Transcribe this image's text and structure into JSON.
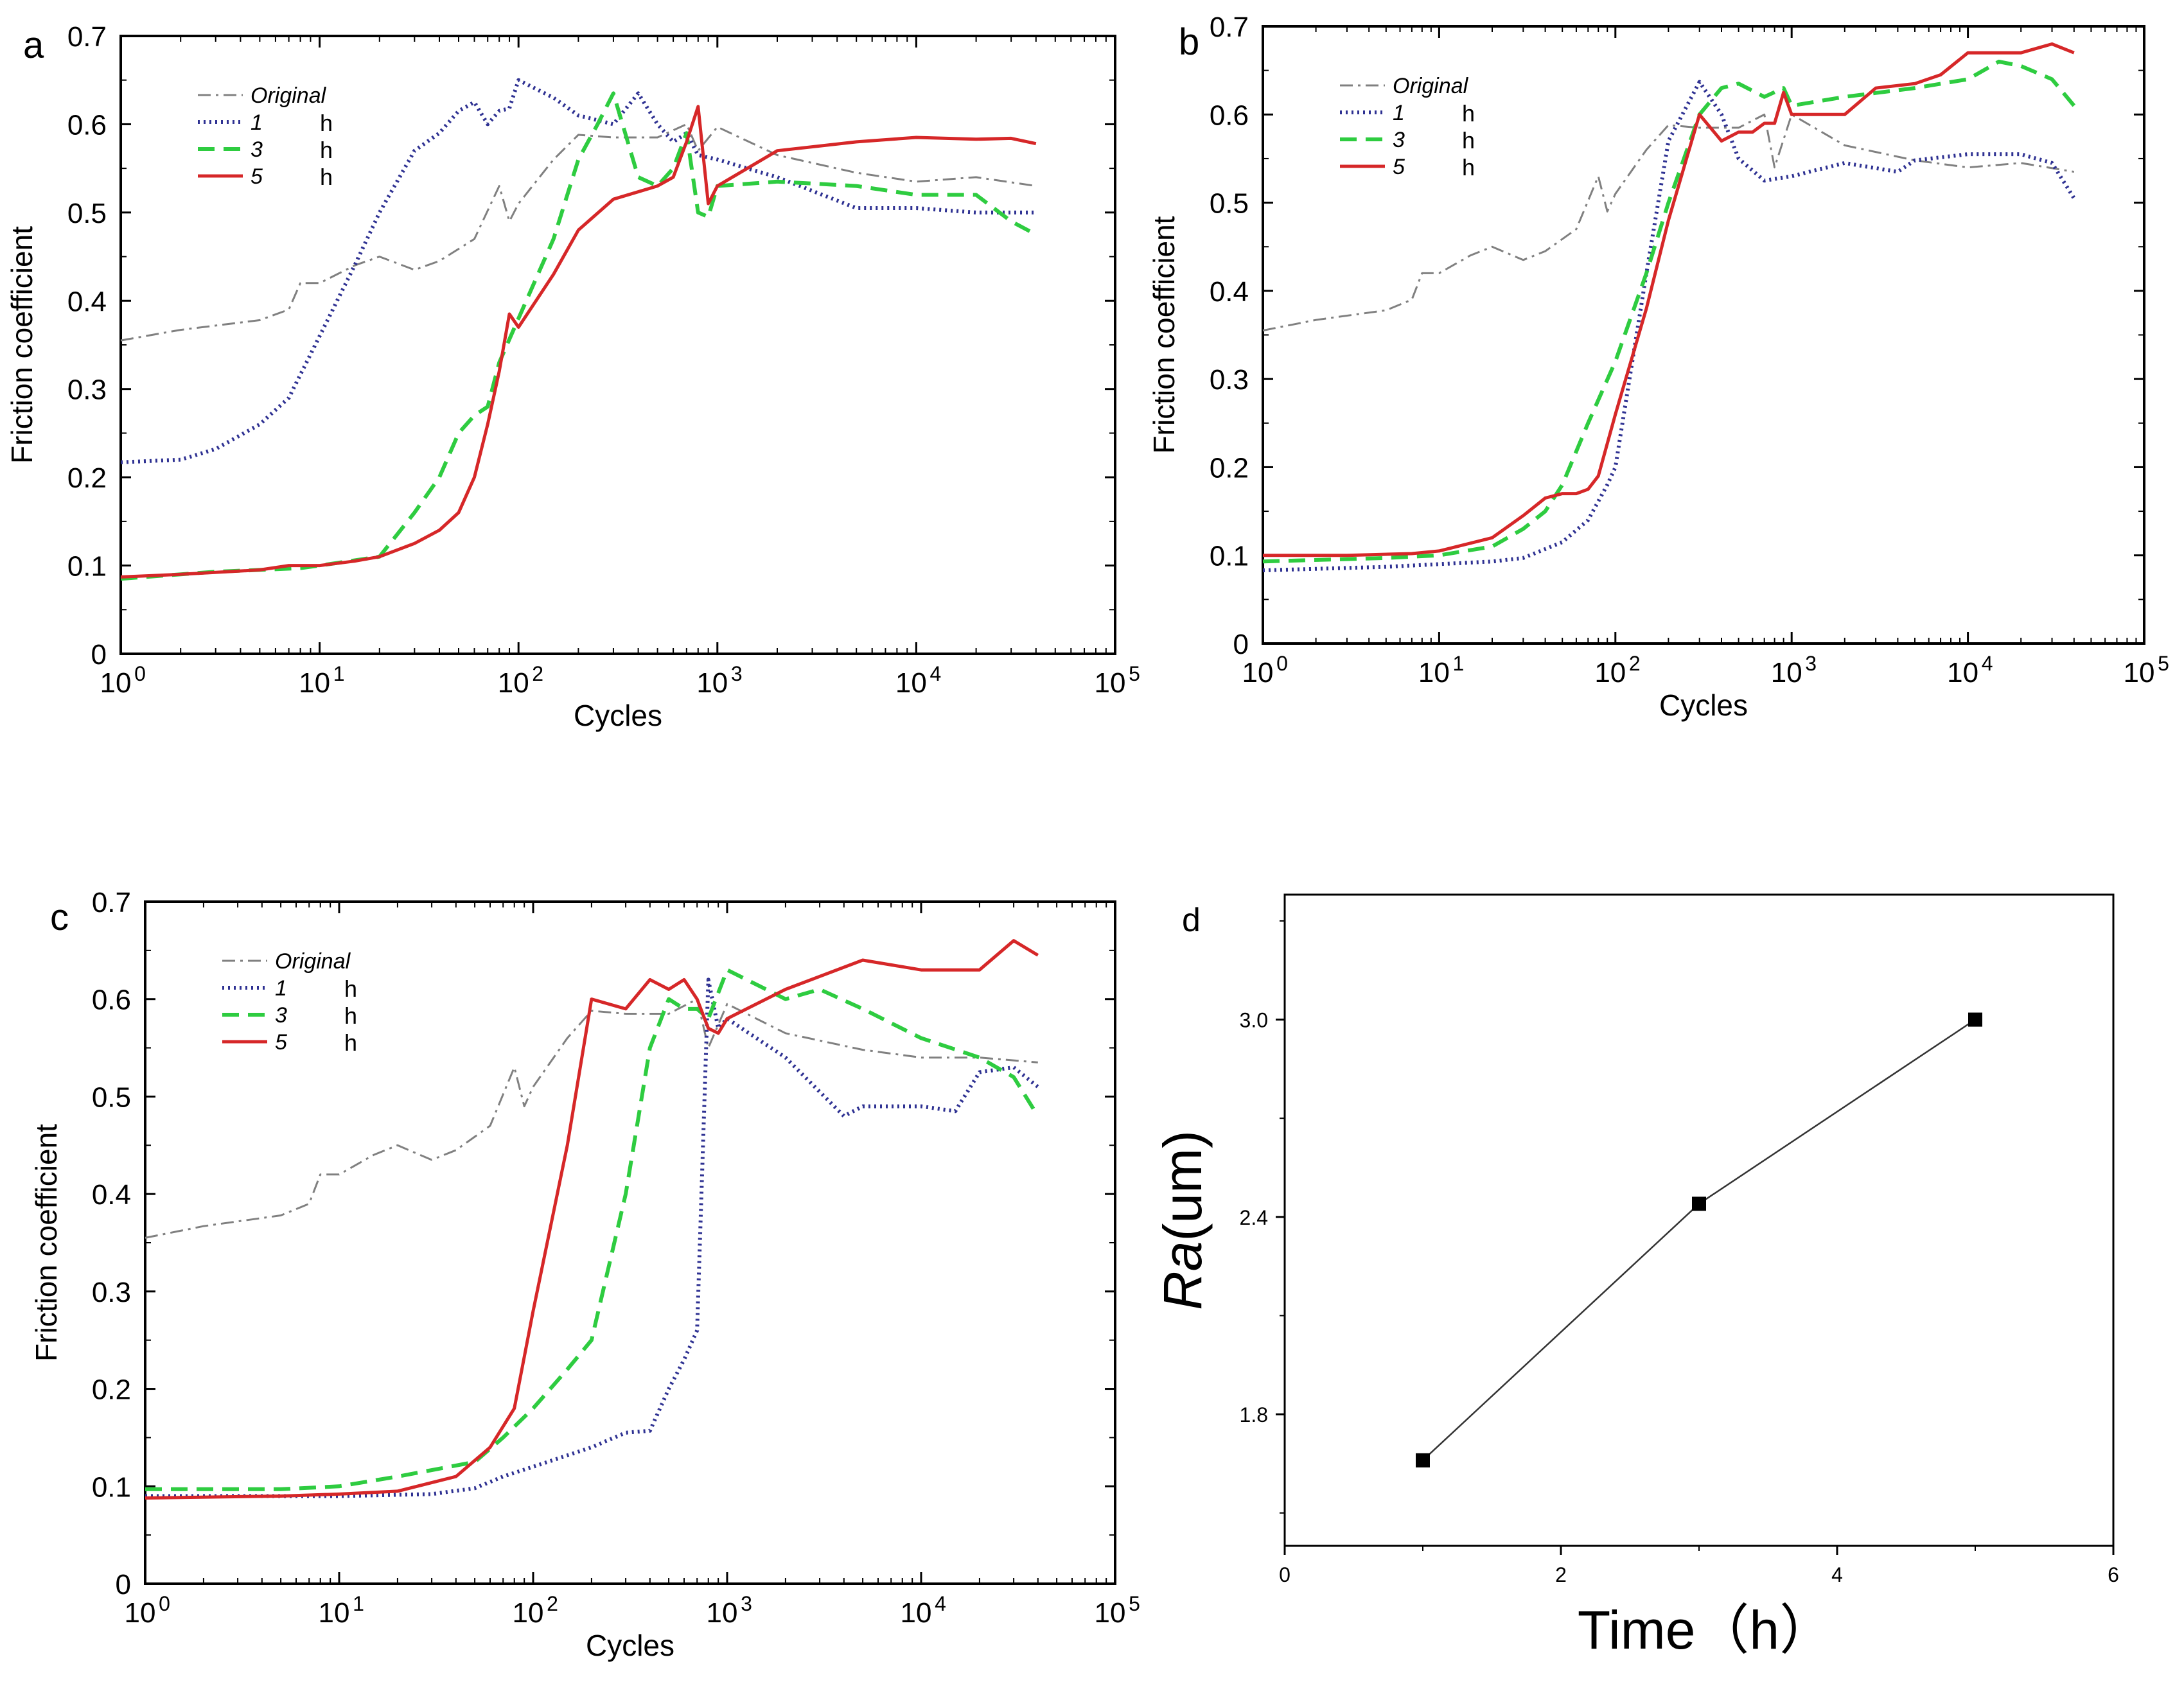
{
  "chart_data": [
    {
      "id": "a",
      "panel_label": "a",
      "type": "line",
      "xlabel": "Cycles",
      "ylabel": "Friction coefficient",
      "xscale": "log",
      "xlim": [
        1,
        100000
      ],
      "ylim": [
        0,
        0.7
      ],
      "xtick_exponents": [
        "0",
        "1",
        "2",
        "3",
        "4",
        "5"
      ],
      "xtick_base": "10",
      "yticks": [
        "0",
        "0.1",
        "0.2",
        "0.3",
        "0.4",
        "0.5",
        "0.6",
        "0.7"
      ],
      "legend_position": "top-left",
      "series": [
        {
          "name": "Original",
          "legend_unit": "",
          "color": "#808080",
          "style": "dashdot",
          "x": [
            1,
            2,
            5,
            7,
            8,
            10,
            15,
            20,
            30,
            40,
            60,
            80,
            90,
            100,
            150,
            200,
            300,
            500,
            700,
            800,
            1000,
            2000,
            5000,
            10000,
            20000,
            40000
          ],
          "y": [
            0.355,
            0.367,
            0.378,
            0.39,
            0.42,
            0.42,
            0.44,
            0.45,
            0.435,
            0.445,
            0.47,
            0.53,
            0.49,
            0.51,
            0.56,
            0.588,
            0.585,
            0.585,
            0.6,
            0.57,
            0.597,
            0.565,
            0.545,
            0.535,
            0.54,
            0.53
          ]
        },
        {
          "name": "1",
          "legend_unit": "h",
          "color": "#2e3192",
          "style": "dotted",
          "x": [
            1,
            2,
            3,
            5,
            7,
            10,
            15,
            20,
            30,
            40,
            50,
            60,
            70,
            80,
            90,
            100,
            150,
            200,
            300,
            400,
            500,
            600,
            700,
            800,
            1000,
            2000,
            5000,
            10000,
            20000,
            40000
          ],
          "y": [
            0.217,
            0.22,
            0.232,
            0.26,
            0.29,
            0.36,
            0.44,
            0.5,
            0.57,
            0.59,
            0.615,
            0.625,
            0.6,
            0.615,
            0.618,
            0.65,
            0.63,
            0.61,
            0.6,
            0.635,
            0.6,
            0.58,
            0.59,
            0.565,
            0.56,
            0.54,
            0.505,
            0.505,
            0.5,
            0.5
          ]
        },
        {
          "name": "3",
          "legend_unit": "h",
          "color": "#2ecc40",
          "style": "dashed",
          "x": [
            1,
            3,
            5,
            8,
            10,
            20,
            30,
            40,
            50,
            60,
            70,
            80,
            100,
            150,
            200,
            250,
            300,
            400,
            500,
            600,
            700,
            800,
            900,
            1000,
            2000,
            5000,
            10000,
            20000,
            30000,
            40000
          ],
          "y": [
            0.085,
            0.093,
            0.095,
            0.097,
            0.1,
            0.11,
            0.16,
            0.2,
            0.25,
            0.27,
            0.28,
            0.33,
            0.38,
            0.47,
            0.56,
            0.6,
            0.635,
            0.54,
            0.53,
            0.55,
            0.59,
            0.5,
            0.495,
            0.53,
            0.535,
            0.53,
            0.52,
            0.52,
            0.49,
            0.475
          ]
        },
        {
          "name": "5",
          "legend_unit": "h",
          "color": "#d62728",
          "style": "solid",
          "x": [
            1,
            2,
            5,
            7,
            10,
            15,
            20,
            30,
            40,
            50,
            60,
            70,
            80,
            90,
            100,
            150,
            200,
            300,
            500,
            600,
            700,
            800,
            900,
            1000,
            2000,
            5000,
            10000,
            20000,
            30000,
            40000
          ],
          "y": [
            0.087,
            0.09,
            0.095,
            0.1,
            0.1,
            0.105,
            0.11,
            0.125,
            0.14,
            0.16,
            0.2,
            0.26,
            0.32,
            0.385,
            0.37,
            0.43,
            0.48,
            0.515,
            0.53,
            0.54,
            0.58,
            0.62,
            0.51,
            0.53,
            0.57,
            0.58,
            0.585,
            0.583,
            0.584,
            0.578
          ]
        }
      ]
    },
    {
      "id": "b",
      "panel_label": "b",
      "type": "line",
      "xlabel": "Cycles",
      "ylabel": "Friction coefficient",
      "xscale": "log",
      "xlim": [
        1,
        100000
      ],
      "ylim": [
        0,
        0.7
      ],
      "xtick_exponents": [
        "0",
        "1",
        "2",
        "3",
        "4",
        "5"
      ],
      "xtick_base": "10",
      "yticks": [
        "0",
        "0.1",
        "0.2",
        "0.3",
        "0.4",
        "0.5",
        "0.6",
        "0.7"
      ],
      "legend_position": "top-left",
      "series": [
        {
          "name": "Original",
          "legend_unit": "",
          "color": "#808080",
          "style": "dashdot",
          "x": [
            1,
            2,
            5,
            7,
            8,
            10,
            15,
            20,
            30,
            40,
            60,
            80,
            90,
            100,
            150,
            200,
            300,
            500,
            700,
            800,
            1000,
            2000,
            5000,
            10000,
            20000,
            40000
          ],
          "y": [
            0.355,
            0.367,
            0.378,
            0.39,
            0.42,
            0.42,
            0.44,
            0.45,
            0.435,
            0.445,
            0.47,
            0.53,
            0.49,
            0.51,
            0.56,
            0.588,
            0.585,
            0.585,
            0.6,
            0.54,
            0.6,
            0.565,
            0.548,
            0.54,
            0.545,
            0.535
          ]
        },
        {
          "name": "1",
          "legend_unit": "h",
          "color": "#2e3192",
          "style": "dotted",
          "x": [
            1,
            5,
            10,
            20,
            30,
            50,
            70,
            90,
            100,
            150,
            200,
            300,
            400,
            500,
            700,
            1000,
            2000,
            4000,
            5000,
            10000,
            15000,
            20000,
            30000,
            40000
          ],
          "y": [
            0.083,
            0.087,
            0.09,
            0.093,
            0.097,
            0.115,
            0.14,
            0.18,
            0.2,
            0.42,
            0.57,
            0.637,
            0.6,
            0.55,
            0.525,
            0.53,
            0.545,
            0.535,
            0.548,
            0.555,
            0.555,
            0.555,
            0.545,
            0.505
          ]
        },
        {
          "name": "3",
          "legend_unit": "h",
          "color": "#2ecc40",
          "style": "dashed",
          "x": [
            1,
            5,
            10,
            20,
            30,
            40,
            50,
            70,
            100,
            150,
            200,
            300,
            400,
            500,
            700,
            900,
            1000,
            2000,
            5000,
            10000,
            15000,
            20000,
            30000,
            40000
          ],
          "y": [
            0.093,
            0.097,
            0.1,
            0.11,
            0.13,
            0.15,
            0.18,
            0.25,
            0.32,
            0.42,
            0.5,
            0.6,
            0.63,
            0.635,
            0.62,
            0.63,
            0.61,
            0.62,
            0.63,
            0.64,
            0.66,
            0.655,
            0.64,
            0.61
          ]
        },
        {
          "name": "5",
          "legend_unit": "h",
          "color": "#d62728",
          "style": "solid",
          "x": [
            1,
            3,
            7,
            10,
            20,
            30,
            40,
            50,
            60,
            70,
            80,
            100,
            150,
            200,
            300,
            400,
            500,
            600,
            700,
            800,
            900,
            1000,
            2000,
            3000,
            5000,
            7000,
            10000,
            15000,
            20000,
            30000,
            40000
          ],
          "y": [
            0.1,
            0.1,
            0.102,
            0.105,
            0.12,
            0.145,
            0.165,
            0.17,
            0.17,
            0.175,
            0.19,
            0.26,
            0.38,
            0.48,
            0.6,
            0.57,
            0.58,
            0.58,
            0.59,
            0.59,
            0.625,
            0.6,
            0.6,
            0.63,
            0.635,
            0.645,
            0.67,
            0.67,
            0.67,
            0.68,
            0.67
          ]
        }
      ]
    },
    {
      "id": "c",
      "panel_label": "c",
      "type": "line",
      "xlabel": "Cycles",
      "ylabel": "Friction coefficient",
      "xscale": "log",
      "xlim": [
        1,
        100000
      ],
      "ylim": [
        0,
        0.7
      ],
      "xtick_exponents": [
        "0",
        "1",
        "2",
        "3",
        "4",
        "5"
      ],
      "xtick_base": "10",
      "yticks": [
        "0",
        "0.1",
        "0.2",
        "0.3",
        "0.4",
        "0.5",
        "0.6",
        "0.7"
      ],
      "legend_position": "top-left",
      "series": [
        {
          "name": "Original",
          "legend_unit": "",
          "color": "#808080",
          "style": "dashdot",
          "x": [
            1,
            2,
            5,
            7,
            8,
            10,
            15,
            20,
            30,
            40,
            60,
            80,
            90,
            100,
            150,
            200,
            300,
            500,
            700,
            800,
            1000,
            2000,
            5000,
            10000,
            20000,
            40000
          ],
          "y": [
            0.355,
            0.367,
            0.378,
            0.39,
            0.42,
            0.42,
            0.44,
            0.45,
            0.435,
            0.445,
            0.47,
            0.53,
            0.49,
            0.51,
            0.56,
            0.588,
            0.585,
            0.585,
            0.6,
            0.55,
            0.595,
            0.565,
            0.548,
            0.54,
            0.54,
            0.535
          ]
        },
        {
          "name": "1",
          "legend_unit": "h",
          "color": "#2e3192",
          "style": "dotted",
          "x": [
            1,
            5,
            10,
            30,
            50,
            70,
            100,
            200,
            300,
            400,
            500,
            600,
            700,
            800,
            900,
            1000,
            2000,
            4000,
            5000,
            7000,
            10000,
            15000,
            20000,
            30000,
            40000
          ],
          "y": [
            0.09,
            0.09,
            0.09,
            0.092,
            0.098,
            0.11,
            0.12,
            0.14,
            0.155,
            0.157,
            0.2,
            0.23,
            0.26,
            0.62,
            0.57,
            0.58,
            0.54,
            0.48,
            0.49,
            0.49,
            0.49,
            0.485,
            0.525,
            0.53,
            0.51
          ]
        },
        {
          "name": "3",
          "legend_unit": "h",
          "color": "#2ecc40",
          "style": "dashed",
          "x": [
            1,
            5,
            10,
            20,
            50,
            70,
            100,
            150,
            200,
            300,
            400,
            500,
            600,
            700,
            800,
            1000,
            2000,
            3000,
            5000,
            10000,
            20000,
            30000,
            40000
          ],
          "y": [
            0.097,
            0.097,
            0.1,
            0.11,
            0.125,
            0.15,
            0.18,
            0.22,
            0.25,
            0.4,
            0.55,
            0.6,
            0.59,
            0.59,
            0.58,
            0.63,
            0.6,
            0.61,
            0.59,
            0.56,
            0.54,
            0.52,
            0.48
          ]
        },
        {
          "name": "5",
          "legend_unit": "h",
          "color": "#d62728",
          "style": "solid",
          "x": [
            1,
            5,
            10,
            20,
            40,
            60,
            80,
            100,
            150,
            200,
            300,
            400,
            500,
            600,
            700,
            800,
            900,
            1000,
            2000,
            5000,
            10000,
            20000,
            30000,
            40000
          ],
          "y": [
            0.088,
            0.09,
            0.092,
            0.095,
            0.11,
            0.14,
            0.18,
            0.28,
            0.45,
            0.6,
            0.59,
            0.62,
            0.61,
            0.62,
            0.6,
            0.57,
            0.565,
            0.58,
            0.61,
            0.64,
            0.63,
            0.63,
            0.66,
            0.645
          ]
        }
      ]
    },
    {
      "id": "d",
      "panel_label": "d",
      "type": "scatter",
      "xlabel": "Time（h）",
      "ylabel_italic": "Ra",
      "ylabel_unit": "(um)",
      "xlim": [
        0,
        6
      ],
      "ylim": [
        1.4,
        3.38
      ],
      "xticks": [
        "0",
        "2",
        "4",
        "6"
      ],
      "xtick_values": [
        0,
        2,
        4,
        6
      ],
      "yticks": [
        "1.8",
        "2.4",
        "3.0"
      ],
      "ytick_values": [
        1.8,
        2.4,
        3.0
      ],
      "connect_points": true,
      "series": [
        {
          "color": "#000000",
          "x": [
            1,
            3,
            5
          ],
          "y": [
            1.66,
            2.44,
            3.0
          ]
        }
      ]
    }
  ]
}
